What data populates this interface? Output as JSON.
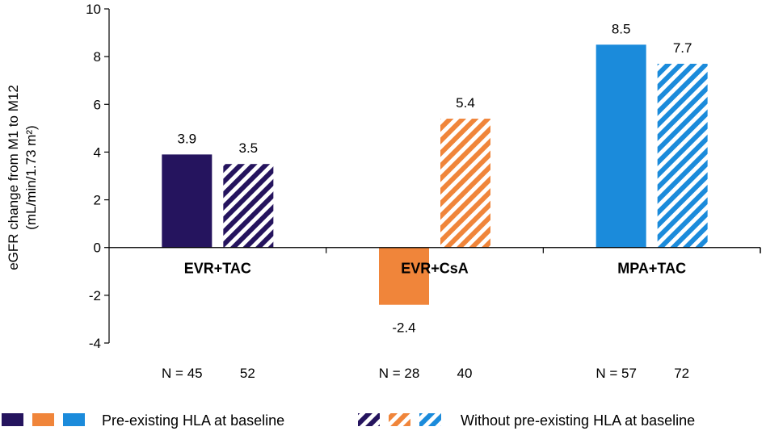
{
  "chart_data": {
    "type": "bar",
    "title": "",
    "ylabel_line1": "eGFR change from M1 to M12",
    "ylabel_line2": "(mL/min/1.73 m²)",
    "ylim": [
      -4,
      10
    ],
    "yticks": [
      -4,
      -2,
      0,
      2,
      4,
      6,
      8,
      10
    ],
    "categories": [
      "EVR+TAC",
      "EVR+CsA",
      "MPA+TAC"
    ],
    "colors": [
      "#25145e",
      "#f0853a",
      "#1b8bdb"
    ],
    "series": [
      {
        "name": "Pre-existing HLA at baseline",
        "pattern": "solid",
        "values": [
          3.9,
          -2.4,
          8.5
        ],
        "labels": [
          "3.9",
          "-2.4",
          "8.5"
        ],
        "n": [
          "N = 45",
          "N = 28",
          "N = 57"
        ]
      },
      {
        "name": "Without pre-existing HLA at baseline",
        "pattern": "hatched",
        "values": [
          3.5,
          5.4,
          7.7
        ],
        "labels": [
          "3.5",
          "5.4",
          "7.7"
        ],
        "n": [
          "52",
          "40",
          "72"
        ]
      }
    ],
    "legend": {
      "position": "bottom",
      "solid_label": "Pre-existing HLA at baseline",
      "hatched_label": "Without pre-existing HLA at baseline"
    }
  }
}
